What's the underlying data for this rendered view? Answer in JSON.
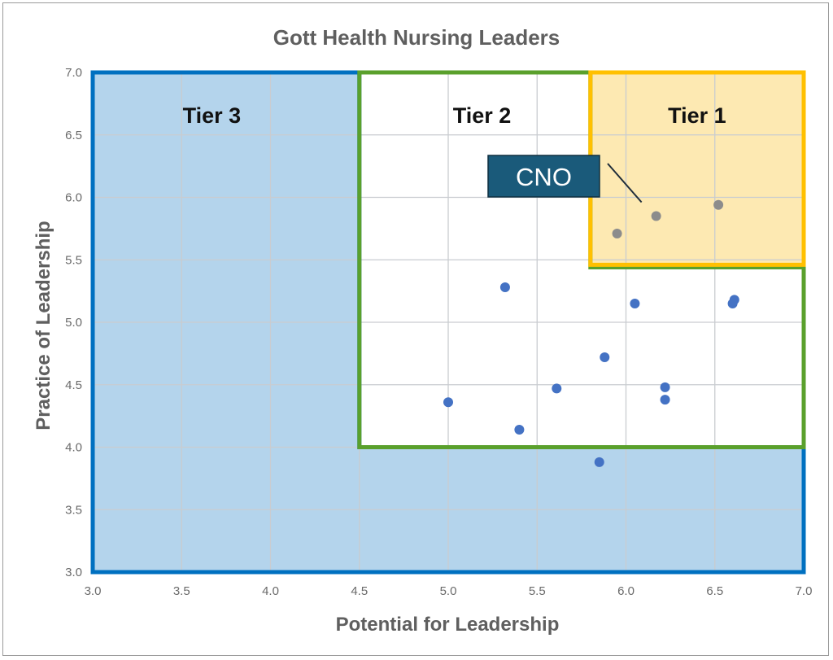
{
  "chart_data": {
    "type": "scatter",
    "title": "Gott Health Nursing Leaders",
    "xlabel": "Potential for Leadership",
    "ylabel": "Practice of Leadership",
    "xlim": [
      3.0,
      7.0
    ],
    "ylim": [
      3.0,
      7.0
    ],
    "xticks": [
      "3.0",
      "3.5",
      "4.0",
      "4.5",
      "5.0",
      "5.5",
      "6.0",
      "6.5",
      "7.0"
    ],
    "yticks": [
      "3.0",
      "3.5",
      "4.0",
      "4.5",
      "5.0",
      "5.5",
      "6.0",
      "6.5",
      "7.0"
    ],
    "grid": true,
    "legend": "none",
    "regions": [
      {
        "label": "Tier 3",
        "color": "#0070c0",
        "fill": "#b4d4ec",
        "polygon": [
          [
            3.0,
            3.0
          ],
          [
            7.0,
            3.0
          ],
          [
            7.0,
            4.0
          ],
          [
            4.5,
            4.0
          ],
          [
            4.5,
            7.0
          ],
          [
            3.0,
            7.0
          ]
        ],
        "label_at": [
          3.67,
          6.66
        ]
      },
      {
        "label": "Tier 2",
        "color": "#5aa02c",
        "fill": "#ffffff",
        "polygon": [
          [
            4.5,
            4.0
          ],
          [
            7.0,
            4.0
          ],
          [
            7.0,
            5.44
          ],
          [
            5.8,
            5.44
          ],
          [
            5.8,
            7.0
          ],
          [
            4.5,
            7.0
          ]
        ],
        "label_at": [
          5.19,
          6.66
        ]
      },
      {
        "label": "Tier 1",
        "color": "#ffc000",
        "fill": "#fde9b2",
        "polygon": [
          [
            5.8,
            5.46
          ],
          [
            7.0,
            5.46
          ],
          [
            7.0,
            7.0
          ],
          [
            5.8,
            7.0
          ]
        ],
        "label_at": [
          6.4,
          6.66
        ]
      }
    ],
    "series": [
      {
        "color": "#4472c4",
        "x": [
          5.0,
          5.32,
          5.4,
          5.61,
          5.85,
          5.88,
          6.05,
          6.22,
          6.22,
          6.6,
          6.61
        ],
        "y": [
          4.36,
          5.28,
          4.14,
          4.47,
          3.88,
          4.72,
          5.15,
          4.48,
          4.38,
          5.15,
          5.18
        ]
      },
      {
        "color": "#8c8c8c",
        "x": [
          5.95,
          6.17,
          6.52
        ],
        "y": [
          5.71,
          5.85,
          5.94
        ]
      }
    ],
    "annotation": {
      "text": "CNO",
      "box_color": "#1a5a7a",
      "point": [
        6.17,
        5.85
      ]
    }
  }
}
